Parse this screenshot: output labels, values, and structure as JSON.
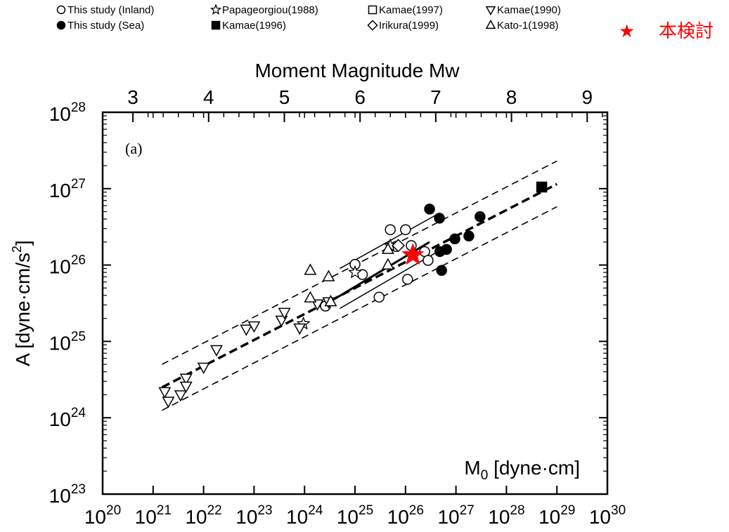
{
  "legend": {
    "items": [
      {
        "symbol": "circle-open",
        "label": "This study (Inland)"
      },
      {
        "symbol": "circle-filled",
        "label": "This study (Sea)"
      },
      {
        "symbol": "star-open",
        "label": "Papageorgiou(1988)"
      },
      {
        "symbol": "square-filled",
        "label": "Kamae(1996)"
      },
      {
        "symbol": "square-open",
        "label": "Kamae(1997)"
      },
      {
        "symbol": "diamond-open",
        "label": "Irikura(1999)"
      },
      {
        "symbol": "triangle-down-open",
        "label": "Kamae(1990)"
      },
      {
        "symbol": "triangle-up-open",
        "label": "Kato-1(1998)"
      }
    ],
    "highlight": {
      "symbol": "★",
      "label": "本検討",
      "color": "#ff0000"
    }
  },
  "chart_data": {
    "type": "scatter",
    "panel_label": "(a)",
    "xlabel": "M0 [dyne·cm]",
    "xlabel_main": "M",
    "xlabel_sub": "0",
    "xlabel_rest": " [dyne·cm]",
    "ylabel": "A [dyne·cm/s2]",
    "ylabel_main": "A [dyne·cm/s",
    "ylabel_sup": "2",
    "ylabel_end": "]",
    "top_axis_label": "Moment Magnitude Mw",
    "x_scale": "log",
    "y_scale": "log",
    "xlim": [
      1e+20,
      1e+30
    ],
    "ylim": [
      1e+23,
      1e+28
    ],
    "x_ticks": {
      "base": "10",
      "exponents": [
        "20",
        "21",
        "22",
        "23",
        "24",
        "25",
        "26",
        "27",
        "28",
        "29",
        "30"
      ]
    },
    "y_ticks": {
      "base": "10",
      "exponents": [
        "23",
        "24",
        "25",
        "26",
        "27",
        "28"
      ]
    },
    "top_ticks": [
      "3",
      "4",
      "5",
      "6",
      "7",
      "8",
      "9"
    ],
    "grid": false,
    "series": [
      {
        "name": "This study (Inland)",
        "marker": "circle-open",
        "points": [
          [
            1e+25,
            1.02e+26
          ],
          [
            1.4e+25,
            7.5e+25
          ],
          [
            3e+25,
            3.8e+25
          ],
          [
            5e+25,
            2.9e+26
          ],
          [
            6.5e+25,
            1.75e+26
          ],
          [
            1e+26,
            2.9e+26
          ],
          [
            1.1e+26,
            6.5e+25
          ],
          [
            1.3e+26,
            1.8e+26
          ],
          [
            2.4e+26,
            1.5e+26
          ],
          [
            2.8e+26,
            1.15e+26
          ],
          [
            2.6e+24,
            2.9e+25
          ]
        ]
      },
      {
        "name": "This study (Sea)",
        "marker": "circle-filled",
        "points": [
          [
            3e+26,
            5.4e+26
          ],
          [
            4.7e+26,
            4.1e+26
          ],
          [
            4.8e+26,
            1.5e+26
          ],
          [
            5.2e+26,
            8.5e+25
          ],
          [
            6.5e+26,
            1.6e+26
          ],
          [
            9.5e+26,
            2.2e+26
          ],
          [
            1.8e+27,
            2.4e+26
          ],
          [
            3e+27,
            4.3e+26
          ]
        ]
      },
      {
        "name": "Papageorgiou(1988)",
        "marker": "star-open",
        "points": [
          [
            9.5e+23,
            1.7e+25
          ],
          [
            1e+25,
            8e+25
          ],
          [
            5e+25,
            1.8e+26
          ]
        ]
      },
      {
        "name": "Kamae(1996)",
        "marker": "square-filled",
        "points": [
          [
            5e+28,
            1.05e+27
          ]
        ]
      },
      {
        "name": "Kamae(1997)",
        "marker": "square-open",
        "points": []
      },
      {
        "name": "Irikura(1999)",
        "marker": "diamond-open",
        "points": [
          [
            7.2e+25,
            1.8e+26
          ]
        ]
      },
      {
        "name": "Kamae(1990)",
        "marker": "triangle-down-open",
        "points": [
          [
            1.7e+21,
            2.2e+24
          ],
          [
            2e+21,
            1.65e+24
          ],
          [
            3.5e+21,
            2e+24
          ],
          [
            4.5e+21,
            3.3e+24
          ],
          [
            4.5e+21,
            2.6e+24
          ],
          [
            1e+22,
            4.6e+24
          ],
          [
            1.8e+22,
            7.8e+24
          ],
          [
            7e+22,
            1.45e+25
          ],
          [
            1e+23,
            1.6e+25
          ],
          [
            3.5e+23,
            1.9e+25
          ],
          [
            4e+23,
            2.4e+25
          ],
          [
            8e+23,
            1.5e+25
          ],
          [
            1.8e+24,
            3.1e+25
          ],
          [
            3e+24,
            3.3e+25
          ]
        ]
      },
      {
        "name": "Kato-1(1998)",
        "marker": "triangle-up-open",
        "points": [
          [
            1.3e+24,
            8.5e+25
          ],
          [
            1.3e+24,
            3.7e+25
          ],
          [
            3e+24,
            7e+25
          ],
          [
            3.3e+24,
            3.3e+25
          ],
          [
            4.5e+25,
            1e+26
          ],
          [
            4.5e+25,
            1.6e+26
          ]
        ]
      },
      {
        "name": "本検討",
        "marker": "star-filled-red",
        "points": [
          [
            1.4e+26,
            1.35e+26
          ]
        ]
      }
    ],
    "fit_lines": [
      {
        "style": "thick-dashed",
        "x": [
          1.5e+21,
          1e+29
        ],
        "y": [
          2.5e+24,
          1.15e+27
        ]
      },
      {
        "style": "thin-dashed",
        "x": [
          1.5e+21,
          1e+29
        ],
        "y": [
          5e+24,
          2.3e+27
        ]
      },
      {
        "style": "thin-dashed",
        "x": [
          1.5e+21,
          1e+29
        ],
        "y": [
          1.25e+24,
          5.8e+26
        ]
      },
      {
        "style": "thick-solid",
        "x": [
          2.5e+24,
          3e+26
        ],
        "y": [
          3e+25,
          2e+26
        ]
      },
      {
        "style": "thin-solid",
        "x": [
          5e+24,
          4e+26
        ],
        "y": [
          9e+25,
          4.5e+26
        ]
      },
      {
        "style": "thin-solid",
        "x": [
          5e+24,
          4e+26
        ],
        "y": [
          2.7e+25,
          1.45e+26
        ]
      }
    ]
  }
}
